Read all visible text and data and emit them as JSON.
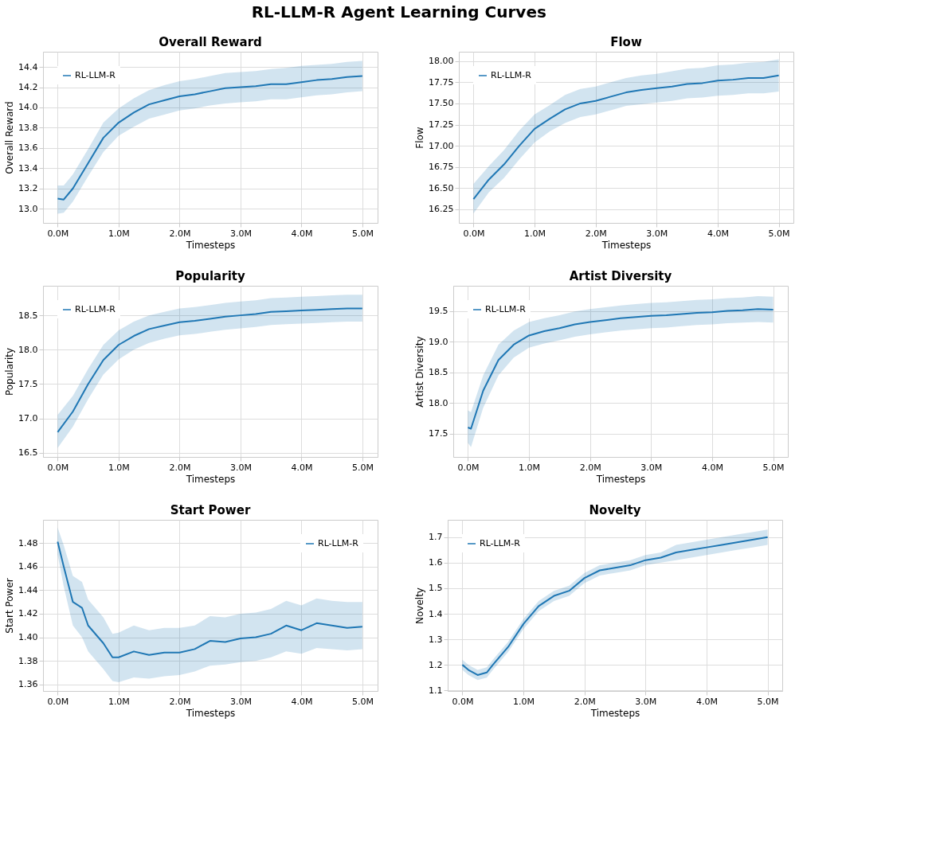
{
  "chart_data": [
    {
      "type": "line",
      "title": "Overall Reward",
      "xlabel": "Timesteps",
      "ylabel": "Overall Reward",
      "annotations": [
        "RL-LLM-R Agent Learning Curves"
      ],
      "legend": "top left",
      "grid": true,
      "xlim": [
        -0.24,
        5.25
      ],
      "ylim": [
        12.86,
        14.55
      ],
      "xticks": [
        {
          "value": 0,
          "label": "0.0M"
        },
        {
          "value": 1,
          "label": "1.0M"
        },
        {
          "value": 2,
          "label": "2.0M"
        },
        {
          "value": 3,
          "label": "3.0M"
        },
        {
          "value": 4,
          "label": "4.0M"
        },
        {
          "value": 5,
          "label": "5.0M"
        }
      ],
      "yticks": [
        {
          "value": 13.0,
          "label": "13.0"
        },
        13.2,
        13.4,
        13.6,
        13.8,
        {
          "value": 14.0,
          "label": "14.0"
        },
        14.2,
        14.4
      ],
      "x": [
        0,
        0.1,
        0.25,
        0.5,
        0.75,
        1.0,
        1.25,
        1.5,
        1.75,
        2.0,
        2.25,
        2.5,
        2.75,
        3.0,
        3.25,
        3.5,
        3.75,
        4.0,
        4.25,
        4.5,
        4.75,
        5.0
      ],
      "series": [
        {
          "name": "RL-LLM-R",
          "color": "#1f77b4",
          "values": [
            13.1,
            13.09,
            13.2,
            13.45,
            13.7,
            13.85,
            13.95,
            14.03,
            14.07,
            14.11,
            14.13,
            14.16,
            14.19,
            14.2,
            14.21,
            14.23,
            14.23,
            14.25,
            14.27,
            14.28,
            14.3,
            14.31
          ],
          "lower": [
            12.95,
            12.96,
            13.07,
            13.32,
            13.56,
            13.72,
            13.81,
            13.89,
            13.93,
            13.97,
            13.99,
            14.02,
            14.04,
            14.05,
            14.06,
            14.08,
            14.08,
            14.1,
            14.12,
            14.13,
            14.15,
            14.16
          ],
          "upper": [
            13.23,
            13.23,
            13.34,
            13.59,
            13.85,
            13.99,
            14.09,
            14.17,
            14.22,
            14.26,
            14.28,
            14.31,
            14.34,
            14.35,
            14.36,
            14.38,
            14.39,
            14.41,
            14.42,
            14.43,
            14.45,
            14.46
          ]
        }
      ]
    },
    {
      "type": "line",
      "title": "Flow",
      "xlabel": "Timesteps",
      "ylabel": "Flow",
      "legend": "top left",
      "grid": true,
      "xlim": [
        -0.24,
        5.24
      ],
      "ylim": [
        16.09,
        18.11
      ],
      "xticks": [
        {
          "value": 0,
          "label": "0.0M"
        },
        {
          "value": 1,
          "label": "1.0M"
        },
        {
          "value": 2,
          "label": "2.0M"
        },
        {
          "value": 3,
          "label": "3.0M"
        },
        {
          "value": 4,
          "label": "4.0M"
        },
        {
          "value": 5,
          "label": "5.0M"
        }
      ],
      "yticks": [
        16.25,
        {
          "value": 16.5,
          "label": "16.50"
        },
        16.75,
        {
          "value": 17.0,
          "label": "17.00"
        },
        17.25,
        {
          "value": 17.5,
          "label": "17.50"
        },
        17.75,
        {
          "value": 18.0,
          "label": "18.00"
        }
      ],
      "x": [
        0,
        0.25,
        0.5,
        0.75,
        1.0,
        1.25,
        1.5,
        1.75,
        2.0,
        2.25,
        2.5,
        2.75,
        3.0,
        3.25,
        3.5,
        3.75,
        4.0,
        4.25,
        4.5,
        4.75,
        5.0
      ],
      "series": [
        {
          "name": "RL-LLM-R",
          "color": "#1f77b4",
          "values": [
            16.37,
            16.6,
            16.78,
            17.0,
            17.2,
            17.32,
            17.43,
            17.5,
            17.53,
            17.58,
            17.63,
            17.66,
            17.68,
            17.7,
            17.73,
            17.74,
            17.77,
            17.78,
            17.8,
            17.8,
            17.83
          ],
          "lower": [
            16.2,
            16.45,
            16.62,
            16.84,
            17.04,
            17.17,
            17.27,
            17.34,
            17.37,
            17.42,
            17.47,
            17.49,
            17.51,
            17.53,
            17.56,
            17.57,
            17.59,
            17.6,
            17.62,
            17.62,
            17.64
          ],
          "upper": [
            16.55,
            16.76,
            16.95,
            17.18,
            17.37,
            17.48,
            17.6,
            17.67,
            17.7,
            17.75,
            17.8,
            17.83,
            17.85,
            17.88,
            17.91,
            17.92,
            17.95,
            17.96,
            17.98,
            17.99,
            18.02
          ]
        }
      ]
    },
    {
      "type": "line",
      "title": "Popularity",
      "xlabel": "Timesteps",
      "ylabel": "Popularity",
      "legend": "top left",
      "grid": true,
      "xlim": [
        -0.24,
        5.25
      ],
      "ylim": [
        16.44,
        18.93
      ],
      "xticks": [
        {
          "value": 0,
          "label": "0.0M"
        },
        {
          "value": 1,
          "label": "1.0M"
        },
        {
          "value": 2,
          "label": "2.0M"
        },
        {
          "value": 3,
          "label": "3.0M"
        },
        {
          "value": 4,
          "label": "4.0M"
        },
        {
          "value": 5,
          "label": "5.0M"
        }
      ],
      "yticks": [
        16.5,
        {
          "value": 17.0,
          "label": "17.0"
        },
        17.5,
        {
          "value": 18.0,
          "label": "18.0"
        },
        18.5
      ],
      "x": [
        0,
        0.25,
        0.5,
        0.75,
        1.0,
        1.25,
        1.5,
        1.75,
        2.0,
        2.25,
        2.5,
        2.75,
        3.0,
        3.25,
        3.5,
        3.75,
        4.0,
        4.25,
        4.5,
        4.75,
        5.0
      ],
      "series": [
        {
          "name": "RL-LLM-R",
          "color": "#1f77b4",
          "values": [
            16.8,
            17.1,
            17.5,
            17.85,
            18.07,
            18.2,
            18.3,
            18.35,
            18.4,
            18.42,
            18.45,
            18.48,
            18.5,
            18.52,
            18.55,
            18.56,
            18.57,
            18.58,
            18.59,
            18.6,
            18.6
          ],
          "lower": [
            16.57,
            16.88,
            17.28,
            17.64,
            17.86,
            18.0,
            18.1,
            18.16,
            18.21,
            18.23,
            18.26,
            18.29,
            18.31,
            18.33,
            18.36,
            18.37,
            18.38,
            18.39,
            18.4,
            18.41,
            18.41
          ],
          "upper": [
            17.05,
            17.33,
            17.72,
            18.07,
            18.28,
            18.41,
            18.5,
            18.55,
            18.6,
            18.62,
            18.65,
            18.68,
            18.7,
            18.72,
            18.75,
            18.76,
            18.77,
            18.78,
            18.79,
            18.8,
            18.8
          ]
        }
      ]
    },
    {
      "type": "line",
      "title": "Artist Diversity",
      "xlabel": "Timesteps",
      "ylabel": "Artist Diversity",
      "legend": "top left",
      "grid": true,
      "xlim": [
        -0.24,
        5.24
      ],
      "ylim": [
        17.12,
        19.91
      ],
      "xticks": [
        {
          "value": 0,
          "label": "0.0M"
        },
        {
          "value": 1,
          "label": "1.0M"
        },
        {
          "value": 2,
          "label": "2.0M"
        },
        {
          "value": 3,
          "label": "3.0M"
        },
        {
          "value": 4,
          "label": "4.0M"
        },
        {
          "value": 5,
          "label": "5.0M"
        }
      ],
      "yticks": [
        17.5,
        {
          "value": 18.0,
          "label": "18.0"
        },
        18.5,
        {
          "value": 19.0,
          "label": "19.0"
        },
        19.5
      ],
      "x": [
        0,
        0.05,
        0.25,
        0.5,
        0.75,
        1.0,
        1.25,
        1.5,
        1.75,
        2.0,
        2.25,
        2.5,
        2.75,
        3.0,
        3.25,
        3.5,
        3.75,
        4.0,
        4.25,
        4.5,
        4.75,
        5.0
      ],
      "series": [
        {
          "name": "RL-LLM-R",
          "color": "#1f77b4",
          "values": [
            17.6,
            17.58,
            18.2,
            18.7,
            18.95,
            19.1,
            19.17,
            19.22,
            19.28,
            19.32,
            19.35,
            19.38,
            19.4,
            19.42,
            19.43,
            19.45,
            19.47,
            19.48,
            19.5,
            19.51,
            19.53,
            19.52
          ],
          "lower": [
            17.35,
            17.28,
            17.92,
            18.45,
            18.74,
            18.9,
            18.97,
            19.02,
            19.08,
            19.12,
            19.15,
            19.18,
            19.2,
            19.22,
            19.23,
            19.25,
            19.27,
            19.28,
            19.3,
            19.31,
            19.32,
            19.31
          ],
          "upper": [
            17.88,
            17.85,
            18.45,
            18.95,
            19.18,
            19.32,
            19.38,
            19.43,
            19.49,
            19.53,
            19.56,
            19.59,
            19.61,
            19.63,
            19.64,
            19.66,
            19.68,
            19.69,
            19.71,
            19.72,
            19.74,
            19.73
          ]
        }
      ]
    },
    {
      "type": "line",
      "title": "Start Power",
      "xlabel": "Timesteps",
      "ylabel": "Start Power",
      "legend": "top right",
      "grid": true,
      "xlim": [
        -0.24,
        5.25
      ],
      "ylim": [
        1.3545,
        1.4996
      ],
      "xticks": [
        {
          "value": 0,
          "label": "0.0M"
        },
        {
          "value": 1,
          "label": "1.0M"
        },
        {
          "value": 2,
          "label": "2.0M"
        },
        {
          "value": 3,
          "label": "3.0M"
        },
        {
          "value": 4,
          "label": "4.0M"
        },
        {
          "value": 5,
          "label": "5.0M"
        }
      ],
      "yticks": [
        1.36,
        1.38,
        {
          "value": 1.4,
          "label": "1.40"
        },
        1.42,
        1.44,
        1.46,
        1.48
      ],
      "x": [
        0,
        0.1,
        0.25,
        0.4,
        0.5,
        0.75,
        0.9,
        1.0,
        1.25,
        1.5,
        1.75,
        2.0,
        2.25,
        2.5,
        2.75,
        3.0,
        3.25,
        3.5,
        3.75,
        4.0,
        4.25,
        4.5,
        4.75,
        5.0
      ],
      "series": [
        {
          "name": "RL-LLM-R",
          "color": "#1f77b4",
          "values": [
            1.481,
            1.46,
            1.43,
            1.425,
            1.41,
            1.395,
            1.383,
            1.383,
            1.388,
            1.385,
            1.387,
            1.387,
            1.39,
            1.397,
            1.396,
            1.399,
            1.4,
            1.403,
            1.41,
            1.406,
            1.412,
            1.41,
            1.408,
            1.409
          ],
          "lower": [
            1.47,
            1.443,
            1.41,
            1.4,
            1.388,
            1.373,
            1.363,
            1.362,
            1.366,
            1.365,
            1.367,
            1.368,
            1.371,
            1.376,
            1.377,
            1.379,
            1.38,
            1.383,
            1.388,
            1.386,
            1.391,
            1.39,
            1.389,
            1.39
          ],
          "upper": [
            1.493,
            1.478,
            1.452,
            1.447,
            1.432,
            1.417,
            1.403,
            1.404,
            1.41,
            1.406,
            1.408,
            1.408,
            1.41,
            1.418,
            1.417,
            1.42,
            1.421,
            1.424,
            1.431,
            1.427,
            1.433,
            1.431,
            1.43,
            1.43
          ]
        }
      ]
    },
    {
      "type": "line",
      "title": "Novelty",
      "xlabel": "Timesteps",
      "ylabel": "Novelty",
      "legend": "top left",
      "grid": true,
      "xlim": [
        -0.24,
        5.24
      ],
      "ylim": [
        1.0975,
        1.768
      ],
      "xticks": [
        {
          "value": 0,
          "label": "0.0M"
        },
        {
          "value": 1,
          "label": "1.0M"
        },
        {
          "value": 2,
          "label": "2.0M"
        },
        {
          "value": 3,
          "label": "3.0M"
        },
        {
          "value": 4,
          "label": "4.0M"
        },
        {
          "value": 5,
          "label": "5.0M"
        }
      ],
      "yticks": [
        1.1,
        1.2,
        1.3,
        1.4,
        1.5,
        1.6,
        1.7
      ],
      "x": [
        0,
        0.1,
        0.25,
        0.4,
        0.5,
        0.75,
        1.0,
        1.25,
        1.5,
        1.75,
        2.0,
        2.25,
        2.5,
        2.75,
        3.0,
        3.25,
        3.5,
        3.75,
        4.0,
        4.25,
        4.5,
        4.75,
        5.0
      ],
      "series": [
        {
          "name": "RL-LLM-R",
          "color": "#1f77b4",
          "values": [
            1.2,
            1.18,
            1.16,
            1.17,
            1.2,
            1.27,
            1.36,
            1.43,
            1.47,
            1.49,
            1.54,
            1.57,
            1.58,
            1.59,
            1.61,
            1.62,
            1.64,
            1.65,
            1.66,
            1.67,
            1.68,
            1.69,
            1.7
          ],
          "lower": [
            1.18,
            1.16,
            1.14,
            1.15,
            1.18,
            1.25,
            1.34,
            1.41,
            1.45,
            1.47,
            1.52,
            1.55,
            1.56,
            1.57,
            1.59,
            1.6,
            1.61,
            1.62,
            1.63,
            1.64,
            1.65,
            1.66,
            1.67
          ],
          "upper": [
            1.22,
            1.2,
            1.18,
            1.19,
            1.22,
            1.29,
            1.38,
            1.45,
            1.49,
            1.51,
            1.56,
            1.59,
            1.6,
            1.61,
            1.63,
            1.64,
            1.67,
            1.68,
            1.69,
            1.7,
            1.71,
            1.72,
            1.73
          ]
        }
      ]
    }
  ]
}
